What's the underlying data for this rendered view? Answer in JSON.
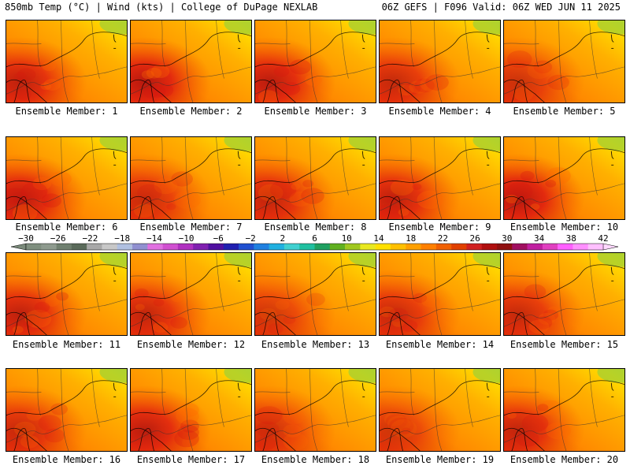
{
  "header": {
    "left": "850mb Temp (°C) | Wind (kts) | College of DuPage NEXLAB",
    "right": "06Z GEFS | F096 Valid: 06Z WED JUN 11 2025"
  },
  "caption_prefix": "Ensemble Member: ",
  "members": [
    {
      "number": "1",
      "label": "Ensemble Member: 1",
      "warmth": 0.8
    },
    {
      "number": "2",
      "label": "Ensemble Member: 2",
      "warmth": 0.9
    },
    {
      "number": "3",
      "label": "Ensemble Member: 3",
      "warmth": 0.85
    },
    {
      "number": "4",
      "label": "Ensemble Member: 4",
      "warmth": 0.7
    },
    {
      "number": "5",
      "label": "Ensemble Member: 5",
      "warmth": 0.6
    },
    {
      "number": "6",
      "label": "Ensemble Member: 6",
      "warmth": 0.85
    },
    {
      "number": "7",
      "label": "Ensemble Member: 7",
      "warmth": 0.65
    },
    {
      "number": "8",
      "label": "Ensemble Member: 8",
      "warmth": 0.75
    },
    {
      "number": "9",
      "label": "Ensemble Member: 9",
      "warmth": 0.8
    },
    {
      "number": "10",
      "label": "Ensemble Member: 10",
      "warmth": 0.9
    },
    {
      "number": "11",
      "label": "Ensemble Member: 11",
      "warmth": 0.8
    },
    {
      "number": "12",
      "label": "Ensemble Member: 12",
      "warmth": 0.75
    },
    {
      "number": "13",
      "label": "Ensemble Member: 13",
      "warmth": 0.55
    },
    {
      "number": "14",
      "label": "Ensemble Member: 14",
      "warmth": 0.7
    },
    {
      "number": "15",
      "label": "Ensemble Member: 15",
      "warmth": 0.7
    },
    {
      "number": "16",
      "label": "Ensemble Member: 16",
      "warmth": 0.7
    },
    {
      "number": "17",
      "label": "Ensemble Member: 17",
      "warmth": 0.85
    },
    {
      "number": "18",
      "label": "Ensemble Member: 18",
      "warmth": 0.6
    },
    {
      "number": "19",
      "label": "Ensemble Member: 19",
      "warmth": 0.55
    },
    {
      "number": "20",
      "label": "Ensemble Member: 20",
      "warmth": 0.75
    }
  ],
  "colorbar": {
    "labels": [
      "-30",
      "-26",
      "-22",
      "-18",
      "-14",
      "-10",
      "-6",
      "-2",
      "2",
      "6",
      "10",
      "14",
      "18",
      "22",
      "26",
      "30",
      "34",
      "38",
      "42"
    ],
    "colors": [
      "#7f8f7f",
      "#8e9a8e",
      "#6f7f6f",
      "#5a6a5a",
      "#a8a8a8",
      "#c8c8c8",
      "#b0c0e0",
      "#9090d0",
      "#e070e0",
      "#d050d0",
      "#b030c0",
      "#8020b0",
      "#5010a0",
      "#2020b0",
      "#2050d0",
      "#2080e0",
      "#20b0e0",
      "#40d0d0",
      "#20c0a0",
      "#20a060",
      "#60b020",
      "#a0c820",
      "#e8e820",
      "#ffe000",
      "#ffc000",
      "#ffa000",
      "#ff8000",
      "#f06000",
      "#e04000",
      "#d02020",
      "#b01010",
      "#901010",
      "#a01060",
      "#c020a0",
      "#e040c0",
      "#ff60ff",
      "#ff90ff",
      "#ffc0ff"
    ]
  }
}
